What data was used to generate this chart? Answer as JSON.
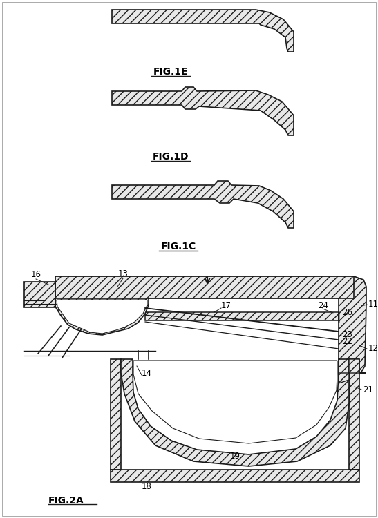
{
  "bg_color": "#ffffff",
  "line_color": "#1a1a1a",
  "fig_width": 5.47,
  "fig_height": 7.5,
  "dpi": 100,
  "labels": {
    "fig1E": "FIG.1E",
    "fig1D": "FIG.1D",
    "fig1C": "FIG.1C",
    "fig2A": "FIG.2A"
  }
}
